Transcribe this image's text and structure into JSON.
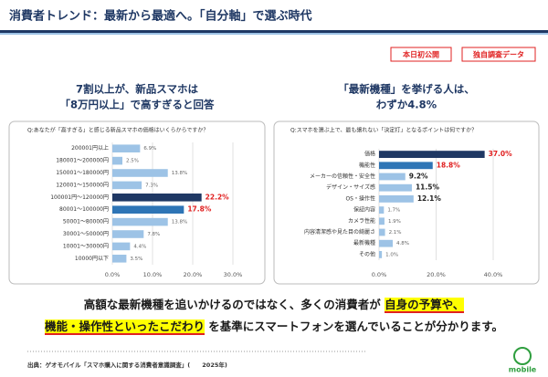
{
  "header": {
    "title": "消費者トレンド：最新から最適へ。「自分軸」で選ぶ時代"
  },
  "badges": [
    "本日初公開",
    "独自調査データ"
  ],
  "chart_data": [
    {
      "type": "barh",
      "heading": [
        "7割以上が、新品スマホは",
        "「8万円以上」で高すぎると回答"
      ],
      "question": "Q:あなたが「高すぎる」と感じる新品スマホの価格はいくらからですか？",
      "categories": [
        "200001円以上",
        "180001～200000円",
        "150001～180000円",
        "120001～150000円",
        "100001円～120000円",
        "80001～100000円",
        "50001～80000円",
        "30001～50000円",
        "10001～30000円",
        "10000円以下"
      ],
      "values": [
        6.9,
        2.5,
        13.8,
        7.3,
        22.2,
        17.8,
        13.8,
        7.8,
        4.4,
        3.5
      ],
      "value_labels": [
        "6.9%",
        "2.5%",
        "13.8%",
        "7.3%",
        "22.2%",
        "17.8%",
        "13.8%",
        "7.8%",
        "4.4%",
        "3.5%"
      ],
      "colors": [
        "#9dc3e6",
        "#9dc3e6",
        "#9dc3e6",
        "#9dc3e6",
        "#1f3864",
        "#2e75b6",
        "#9dc3e6",
        "#9dc3e6",
        "#9dc3e6",
        "#9dc3e6"
      ],
      "label_colors": [
        "#666666",
        "#666666",
        "#666666",
        "#666666",
        "#e02020",
        "#e02020",
        "#666666",
        "#666666",
        "#666666",
        "#666666"
      ],
      "xlim": [
        0,
        30
      ],
      "xticks": [
        {
          "value": 0,
          "label": "0.0%"
        },
        {
          "value": 10,
          "label": "10.0%"
        },
        {
          "value": 20,
          "label": "20.0%"
        },
        {
          "value": 30,
          "label": "30.0%"
        }
      ],
      "grid": true
    },
    {
      "type": "barh",
      "heading": [
        "「最新機種」を挙げる人は、",
        "わずか4.8%"
      ],
      "question": "Q:スマホを選ぶ上で、最も譲れない「決定打」となるポイントは何ですか？",
      "categories": [
        "価格",
        "機能性",
        "メーカーの信頼性・安全性",
        "デザイン・サイズ感",
        "OS・操作性",
        "保証内容",
        "カメラ性能",
        "内容清潔感や見た目の綺麗さ",
        "最新機種",
        "その他"
      ],
      "values": [
        37.0,
        18.8,
        9.2,
        11.5,
        12.1,
        1.7,
        1.9,
        2.1,
        4.8,
        1.0
      ],
      "value_labels": [
        "37.0%",
        "18.8%",
        "9.2%",
        "11.5%",
        "12.1%",
        "1.7%",
        "1.9%",
        "2.1%",
        "4.8%",
        "1.0%"
      ],
      "colors": [
        "#1f3864",
        "#2e75b6",
        "#9dc3e6",
        "#9dc3e6",
        "#9dc3e6",
        "#9dc3e6",
        "#9dc3e6",
        "#9dc3e6",
        "#9dc3e6",
        "#9dc3e6"
      ],
      "label_colors": [
        "#e02020",
        "#e02020",
        "#222222",
        "#222222",
        "#222222",
        "#666666",
        "#666666",
        "#666666",
        "#666666",
        "#666666"
      ],
      "xlim": [
        0,
        40
      ],
      "xticks": [
        {
          "value": 0,
          "label": "0.0%"
        },
        {
          "value": 20,
          "label": "20.0%"
        },
        {
          "value": 40,
          "label": "40.0%"
        }
      ],
      "grid": true
    }
  ],
  "summary": [
    [
      "高額な最新機種を追いかけるのではなく、多くの消費者が ",
      "自身の予算や、"
    ],
    [
      "機能・操作性といったこだわり",
      " を基準にスマートフォンを選んでいることが分かります。"
    ]
  ],
  "source": "出典：ゲオモバイル「スマホ購入に関する消費者意識調査」(　　2025年)",
  "logo": "mobile"
}
